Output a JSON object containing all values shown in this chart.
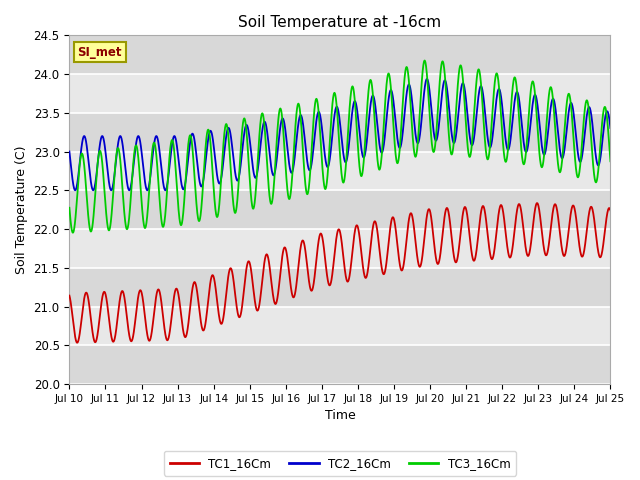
{
  "title": "Soil Temperature at -16cm",
  "xlabel": "Time",
  "ylabel": "Soil Temperature (C)",
  "ylim": [
    20.0,
    24.5
  ],
  "background_color": "#ffffff",
  "plot_bg_color": "#e8e8e8",
  "stripe_colors": [
    "#d8d8d8",
    "#e8e8e8"
  ],
  "grid_color": "#ffffff",
  "legend_label": "SI_met",
  "series": {
    "TC1_16Cm": {
      "color": "#cc0000",
      "label": "TC1_16Cm"
    },
    "TC2_16Cm": {
      "color": "#0000cc",
      "label": "TC2_16Cm"
    },
    "TC3_16Cm": {
      "color": "#00cc00",
      "label": "TC3_16Cm"
    }
  },
  "tick_labels": [
    "Jul 10",
    "Jul 11",
    "Jul 12",
    "Jul 13",
    "Jul 14",
    "Jul 15",
    "Jul 16",
    "Jul 17",
    "Jul 18",
    "Jul 19",
    "Jul 20",
    "Jul 21",
    "Jul 22",
    "Jul 23",
    "Jul 24",
    "Jul 25"
  ],
  "yticks": [
    20.0,
    20.5,
    21.0,
    21.5,
    22.0,
    22.5,
    23.0,
    23.5,
    24.0,
    24.5
  ]
}
